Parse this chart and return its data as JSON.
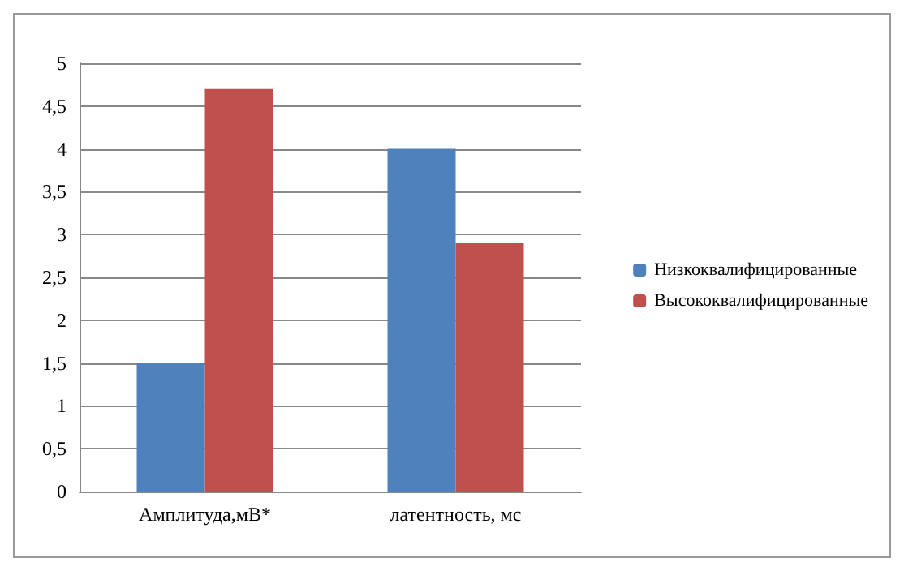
{
  "chart_data": {
    "type": "bar",
    "categories": [
      "Амплитуда,мВ*",
      "латентность, мс"
    ],
    "series": [
      {
        "name": "Низкоквалифицированные",
        "color": "#4f81bd",
        "values": [
          1.5,
          4.0
        ]
      },
      {
        "name": "Высококвалифицированные",
        "color": "#c0504d",
        "values": [
          4.7,
          2.9
        ]
      }
    ],
    "ylim": [
      0,
      5
    ],
    "yticks": [
      0,
      {
        "value": 0.5,
        "label": "0,5"
      },
      1,
      {
        "value": 1.5,
        "label": "1,5"
      },
      2,
      {
        "value": 2.5,
        "label": "2,5"
      },
      3,
      {
        "value": 3.5,
        "label": "3,5"
      },
      4,
      {
        "value": 4.5,
        "label": "4,5"
      },
      5
    ],
    "grid": "y",
    "legend": "right"
  }
}
